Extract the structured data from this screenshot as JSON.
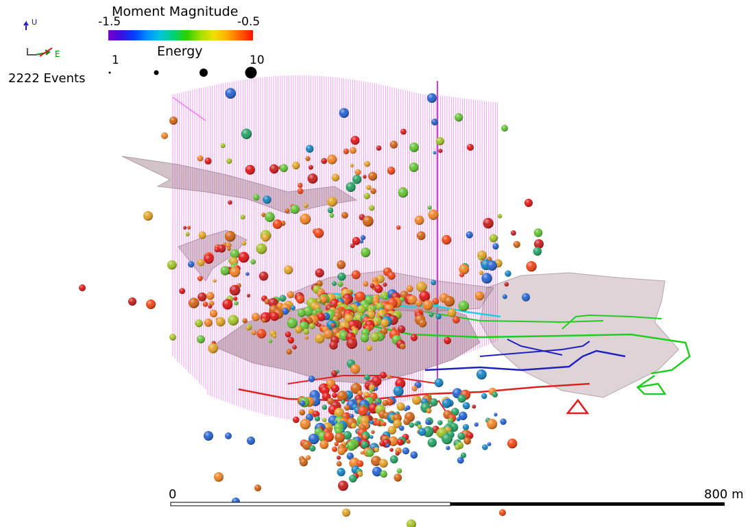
{
  "colormap": {
    "title": "Moment Magnitude",
    "min_label": "-1.5",
    "max_label": "-0.5",
    "colors": [
      "#7a00c8",
      "#3a10e0",
      "#0040ff",
      "#0090ff",
      "#00c8d8",
      "#00d070",
      "#30d000",
      "#a0e000",
      "#f0e000",
      "#ffb000",
      "#ff6000",
      "#ff1000"
    ]
  },
  "energy_legend": {
    "title": "Energy",
    "min_label": "1",
    "max_label": "10",
    "marker_radii": [
      1.5,
      3.5,
      6,
      8.5
    ]
  },
  "event_count": "2222 Events",
  "axes_triad": {
    "up_label": "U",
    "east_label": "E"
  },
  "scale_bar": {
    "start_label": "0",
    "end_label": "800 m"
  },
  "colors": {
    "boreholes": "#f07cf0",
    "ore_surface": "#9a7a86",
    "tunnel_red": "#e02020",
    "tunnel_green": "#20cc20",
    "tunnel_blue": "#2020c0",
    "tunnel_cyan": "#20d0e0",
    "event_palette": [
      "#e01010",
      "#c81818",
      "#f04010",
      "#f08020",
      "#d06010",
      "#e0a020",
      "#a0c020",
      "#60c030",
      "#20a060",
      "#2060d0",
      "#1080c0"
    ]
  }
}
